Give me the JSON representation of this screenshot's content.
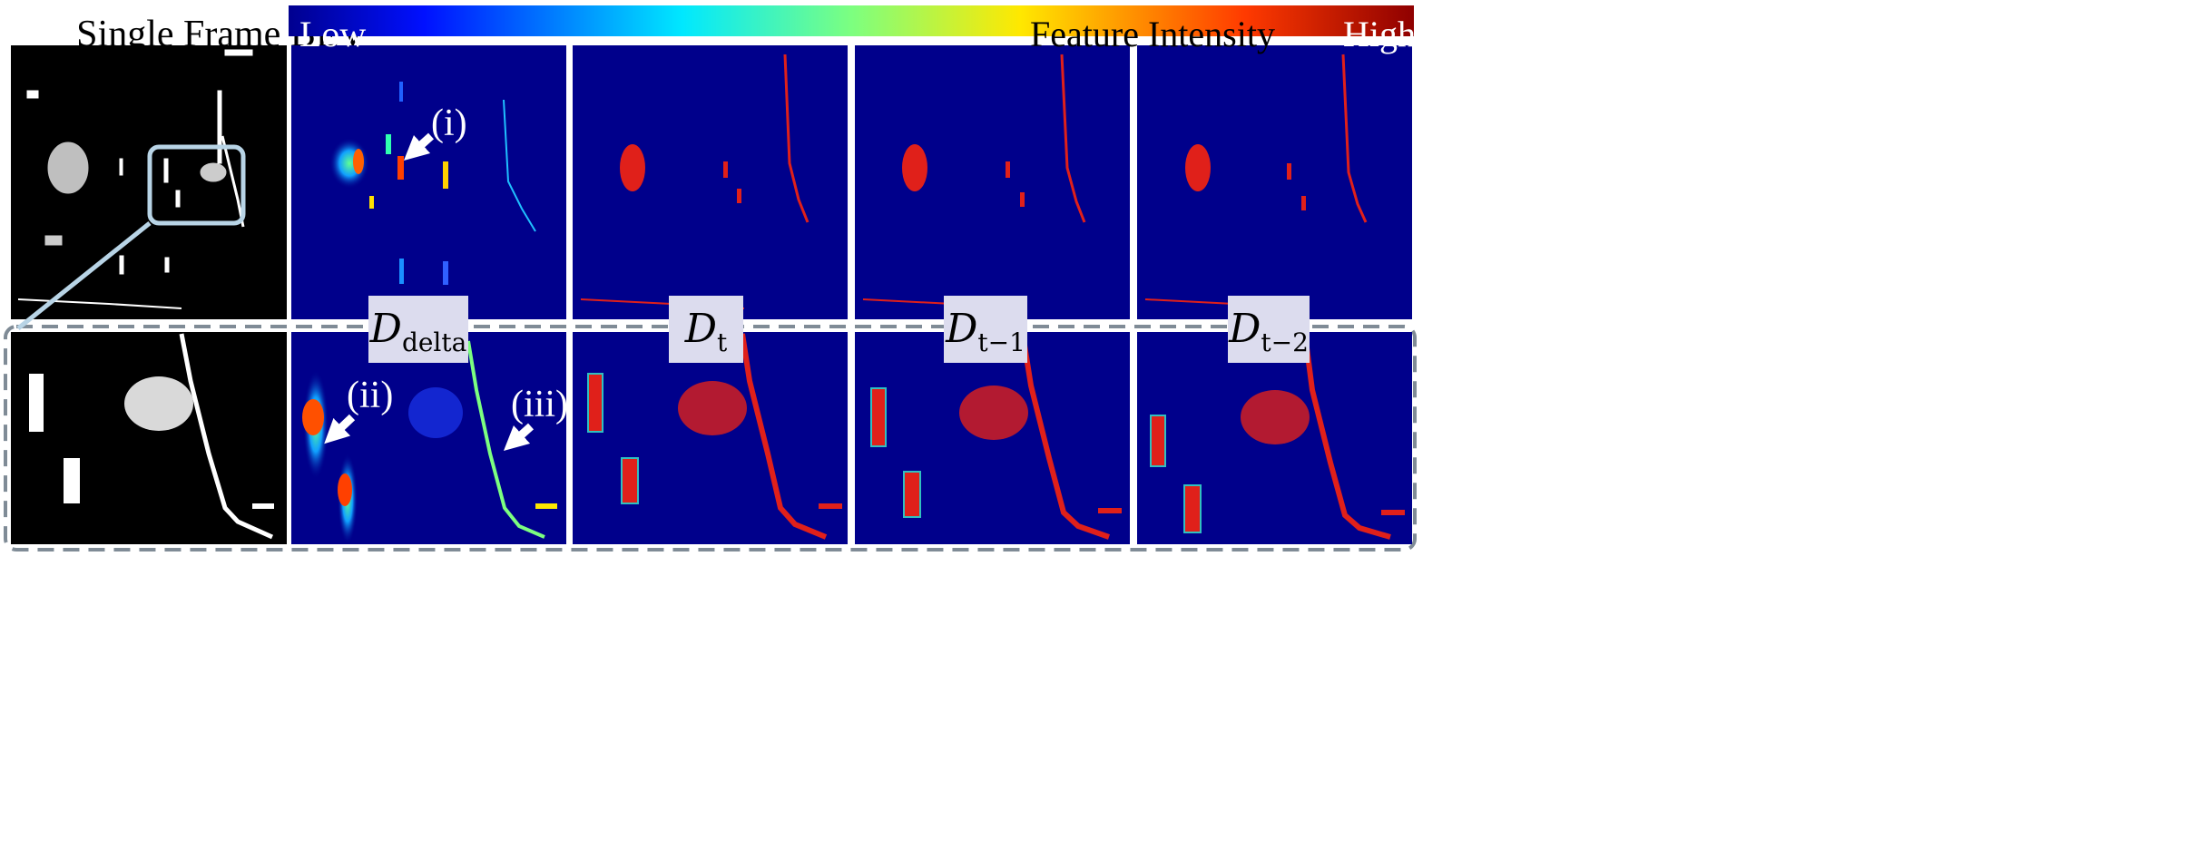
{
  "header": {
    "title": "Single Frame BEV",
    "colorbar": {
      "low": "Low",
      "mid": "Feature Intensity",
      "high": "High"
    }
  },
  "colors": {
    "bev_bg": "#000000",
    "heat_bg": "#00008b",
    "tag_bg": "#dcdcee",
    "zoom_box": "#b8d4e6",
    "dashed_box": "#7f8b96",
    "red_mark": "#e0201a"
  },
  "panels": {
    "delta": {
      "symbol": "D",
      "sub": "delta"
    },
    "t": {
      "symbol": "D",
      "sub": "t"
    },
    "t1": {
      "symbol": "D",
      "sub": "t−1"
    },
    "t2": {
      "symbol": "D",
      "sub": "t−2"
    }
  },
  "annotations": {
    "i": "(i)",
    "ii": "(ii)",
    "iii": "(iii)"
  },
  "icons": [
    "arrow-icon"
  ]
}
